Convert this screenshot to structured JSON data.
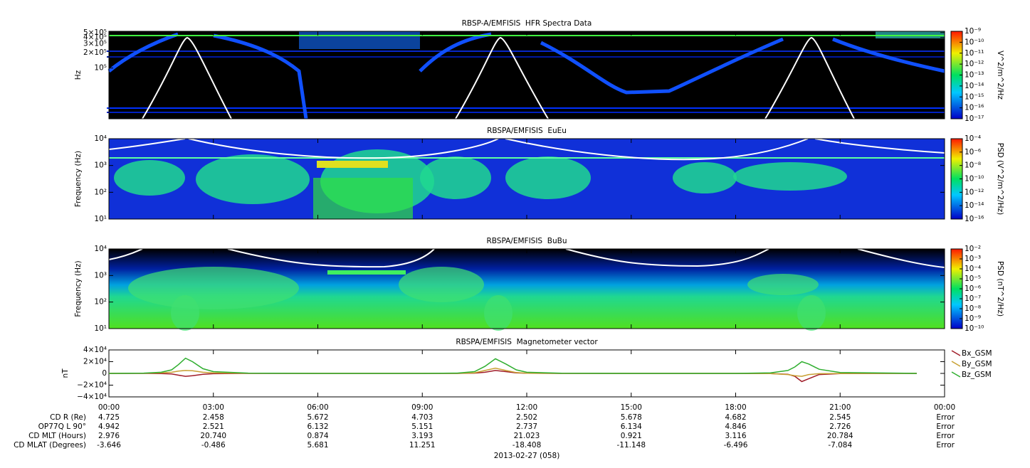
{
  "chart_data": [
    {
      "type": "heatmap",
      "title": "RBSP-A/EMFISIS  HFR Spectra Data",
      "y_label": "Hz",
      "log_y": true,
      "ylim": [
        10000,
        530000
      ],
      "yticks": [
        {
          "value": 500000,
          "label": "5×10⁵"
        },
        {
          "value": 400000,
          "label": "4×10⁵"
        },
        {
          "value": 300000,
          "label": "3×10⁵"
        },
        {
          "value": 200000,
          "label": "2×10⁵"
        },
        {
          "value": 100000,
          "label": "10⁵"
        }
      ],
      "colorbar_label": "V^2/m^2/Hz",
      "clim": [
        1e-17,
        1e-09
      ],
      "cticks": [
        {
          "value": 1e-09,
          "label": "10⁻⁹"
        },
        {
          "value": 1e-10,
          "label": "10⁻¹⁰"
        },
        {
          "value": 1e-11,
          "label": "10⁻¹¹"
        },
        {
          "value": 1e-12,
          "label": "10⁻¹²"
        },
        {
          "value": 1e-13,
          "label": "10⁻¹³"
        },
        {
          "value": 1e-14,
          "label": "10⁻¹⁴"
        },
        {
          "value": 1e-15,
          "label": "10⁻¹⁵"
        },
        {
          "value": 1e-16,
          "label": "10⁻¹⁶"
        },
        {
          "value": 1e-17,
          "label": "10⁻¹⁷"
        }
      ]
    },
    {
      "type": "heatmap",
      "title": "RBSPA/EMFISIS  EuEu",
      "y_label": "Frequency (Hz)",
      "log_y": true,
      "ylim": [
        10,
        10000
      ],
      "yticks": [
        {
          "value": 10000,
          "label": "10⁴"
        },
        {
          "value": 1000,
          "label": "10³"
        },
        {
          "value": 100,
          "label": "10²"
        },
        {
          "value": 10,
          "label": "10¹"
        }
      ],
      "colorbar_label": "PSD (V^2/m^2/Hz)",
      "clim": [
        1e-16,
        0.0001
      ],
      "cticks": [
        {
          "value": 0.0001,
          "label": "10⁻⁴"
        },
        {
          "value": 1e-06,
          "label": "10⁻⁶"
        },
        {
          "value": 1e-08,
          "label": "10⁻⁸"
        },
        {
          "value": 1e-10,
          "label": "10⁻¹⁰"
        },
        {
          "value": 1e-12,
          "label": "10⁻¹²"
        },
        {
          "value": 1e-14,
          "label": "10⁻¹⁴"
        },
        {
          "value": 1e-16,
          "label": "10⁻¹⁶"
        }
      ]
    },
    {
      "type": "heatmap",
      "title": "RBSPA/EMFISIS  BuBu",
      "y_label": "Frequency (Hz)",
      "log_y": true,
      "ylim": [
        10,
        10000
      ],
      "yticks": [
        {
          "value": 10000,
          "label": "10⁴"
        },
        {
          "value": 1000,
          "label": "10³"
        },
        {
          "value": 100,
          "label": "10²"
        },
        {
          "value": 10,
          "label": "10¹"
        }
      ],
      "colorbar_label": "PSD (nT^2/Hz)",
      "clim": [
        1e-10,
        0.01
      ],
      "cticks": [
        {
          "value": 0.01,
          "label": "10⁻²"
        },
        {
          "value": 0.001,
          "label": "10⁻³"
        },
        {
          "value": 0.0001,
          "label": "10⁻⁴"
        },
        {
          "value": 1e-05,
          "label": "10⁻⁵"
        },
        {
          "value": 1e-06,
          "label": "10⁻⁶"
        },
        {
          "value": 1e-07,
          "label": "10⁻⁷"
        },
        {
          "value": 1e-08,
          "label": "10⁻⁸"
        },
        {
          "value": 1e-09,
          "label": "10⁻⁹"
        },
        {
          "value": 1e-10,
          "label": "10⁻¹⁰"
        }
      ]
    },
    {
      "type": "line",
      "title": "RBSPA/EMFISIS  Magnetometer vector",
      "y_label": "nT",
      "ylim": [
        -40000,
        40000
      ],
      "yticks": [
        {
          "value": 40000,
          "label": "4×10⁴"
        },
        {
          "value": 20000,
          "label": "2×10⁴"
        },
        0,
        {
          "value": -20000,
          "label": "−2×10⁴"
        },
        {
          "value": -40000,
          "label": "−4×10⁴"
        }
      ],
      "xlim": [
        0,
        24
      ],
      "xticks": [
        {
          "value": 0,
          "label": "00:00"
        },
        {
          "value": 3,
          "label": "03:00"
        },
        {
          "value": 6,
          "label": "06:00"
        },
        {
          "value": 9,
          "label": "09:00"
        },
        {
          "value": 12,
          "label": "12:00"
        },
        {
          "value": 15,
          "label": "15:00"
        },
        {
          "value": 18,
          "label": "18:00"
        },
        {
          "value": 21,
          "label": "21:00"
        },
        {
          "value": 24,
          "label": "00:00"
        }
      ],
      "x": [
        0,
        1,
        1.5,
        1.8,
        2.0,
        2.2,
        2.4,
        2.7,
        3,
        4,
        6,
        9,
        10,
        10.5,
        10.8,
        11.1,
        11.4,
        11.7,
        12,
        13,
        15,
        18,
        19,
        19.5,
        19.7,
        19.9,
        20.1,
        20.4,
        21,
        23.2
      ],
      "series": [
        {
          "name": "Bx_GSM",
          "color": "#a01c28",
          "values": [
            0,
            0,
            -300,
            -1000,
            -3000,
            -5000,
            -4000,
            -1500,
            -500,
            0,
            0,
            0,
            0,
            500,
            2000,
            5000,
            3000,
            800,
            200,
            0,
            0,
            0,
            -200,
            -1500,
            -5000,
            -14000,
            -9000,
            -2000,
            -300,
            0
          ]
        },
        {
          "name": "By_GSM",
          "color": "#c8a032",
          "values": [
            0,
            100,
            800,
            2000,
            4000,
            5000,
            4500,
            2000,
            800,
            100,
            0,
            0,
            0,
            1000,
            5000,
            9000,
            5000,
            1500,
            400,
            0,
            0,
            0,
            -300,
            -2000,
            -4000,
            -5000,
            -2000,
            -500,
            -100,
            0
          ]
        },
        {
          "name": "Bz_GSM",
          "color": "#2fae2f",
          "values": [
            0,
            500,
            2000,
            6000,
            15000,
            26000,
            20000,
            8000,
            3000,
            500,
            0,
            0,
            500,
            3000,
            12000,
            25000,
            16000,
            6000,
            2000,
            300,
            0,
            0,
            1000,
            5000,
            11000,
            20000,
            16000,
            7000,
            1500,
            0
          ]
        }
      ]
    }
  ],
  "ephemeris": {
    "rows": [
      {
        "label": "CD R (Re)",
        "values": [
          "4.725",
          "2.458",
          "5.672",
          "4.703",
          "2.502",
          "5.678",
          "4.682",
          "2.545",
          "Error"
        ]
      },
      {
        "label": "OP77Q L 90°",
        "values": [
          "4.942",
          "2.521",
          "6.132",
          "5.151",
          "2.737",
          "6.134",
          "4.846",
          "2.726",
          "Error"
        ]
      },
      {
        "label": "CD MLT (Hours)",
        "values": [
          "2.976",
          "20.740",
          "0.874",
          "3.193",
          "21.023",
          "0.921",
          "3.116",
          "20.784",
          "Error"
        ]
      },
      {
        "label": "CD MLAT (Degrees)",
        "values": [
          "-3.646",
          "-0.486",
          "5.681",
          "11.251",
          "-18.408",
          "-11.148",
          "-6.496",
          "-7.084",
          "Error"
        ]
      }
    ],
    "date": "2013-02-27 (058)"
  }
}
